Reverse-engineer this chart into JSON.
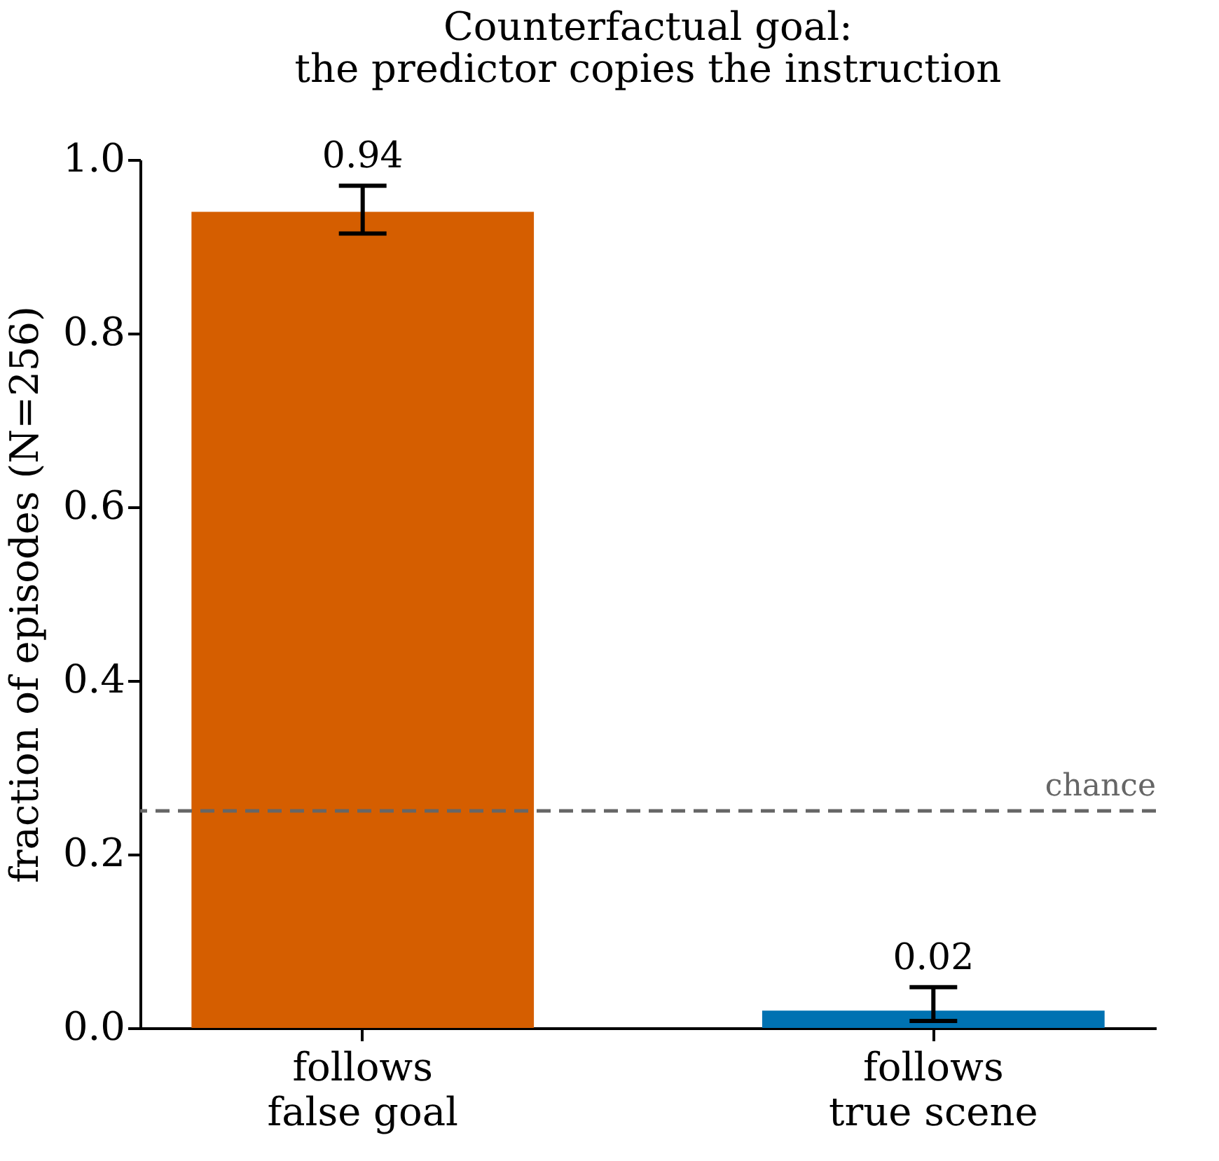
{
  "chart_data": {
    "type": "bar",
    "title": "Counterfactual goal:\nthe predictor copies the instruction",
    "ylabel": "fraction of episodes (N=256)",
    "categories": [
      "follows\nfalse goal",
      "follows\ntrue scene"
    ],
    "values": [
      0.94,
      0.02
    ],
    "colors": [
      "#d55e00",
      "#0072b2"
    ],
    "errors": [
      [
        0.915,
        0.97
      ],
      [
        0.008,
        0.047
      ]
    ],
    "data_labels": true,
    "ylim": [
      0,
      1.0
    ],
    "yticks": [
      {
        "value": 0,
        "label": "0.0"
      },
      0.2,
      0.4,
      0.6,
      0.8,
      {
        "value": 1,
        "label": "1.0"
      }
    ],
    "ref_lines": [
      {
        "axis": "y",
        "value": 0.25,
        "label": "chance",
        "color": "#666666",
        "line_style": "dashed"
      }
    ],
    "grid": false
  }
}
